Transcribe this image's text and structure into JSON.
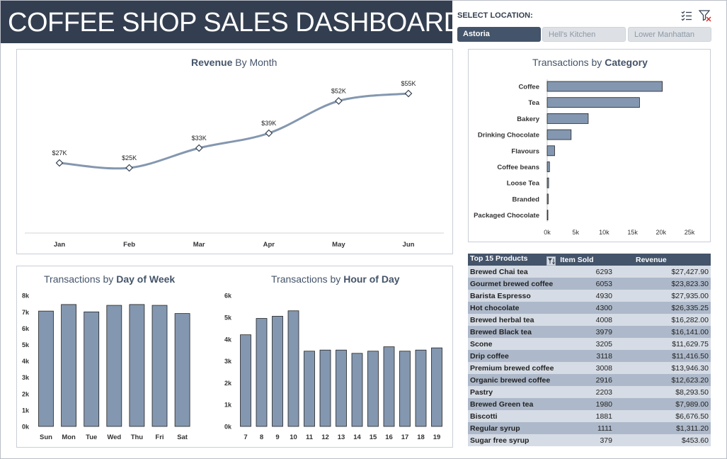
{
  "title": "COFFEE SHOP SALES DASHBOARD",
  "slicer": {
    "label": "SELECT LOCATION:",
    "options": [
      "Astoria",
      "Hell's Kitchen",
      "Lower Manhattan"
    ],
    "selected": "Astoria",
    "icons": [
      "multi-select-icon",
      "clear-filter-icon"
    ]
  },
  "colors": {
    "dark": "#333f50",
    "bar": "#8497b0",
    "accent": "#44546a"
  },
  "panels": {
    "revenue_title_bold": "Revenue",
    "revenue_title_rest": " By Month",
    "category_title_rest": "Transactions by ",
    "category_title_bold": "Category",
    "dow_title_rest": "Transactions by ",
    "dow_title_bold": "Day of Week",
    "hour_title_rest": "Transactions by ",
    "hour_title_bold": "Hour of Day"
  },
  "chart_data": [
    {
      "type": "line",
      "title": "Revenue By Month",
      "categories": [
        "Jan",
        "Feb",
        "Mar",
        "Apr",
        "May",
        "Jun"
      ],
      "values": [
        27,
        25,
        33,
        39,
        52,
        55
      ],
      "labels": [
        "$27K",
        "$25K",
        "$33K",
        "$39K",
        "$52K",
        "$55K"
      ],
      "smooth": true,
      "markers": "diamond"
    },
    {
      "type": "bar",
      "orientation": "horizontal",
      "title": "Transactions by Category",
      "categories": [
        "Coffee",
        "Tea",
        "Bakery",
        "Drinking Chocolate",
        "Flavours",
        "Coffee beans",
        "Loose Tea",
        "Branded",
        "Packaged Chocolate"
      ],
      "values": [
        20200,
        16200,
        7200,
        4200,
        1300,
        400,
        250,
        180,
        100
      ],
      "xticks": [
        "0k",
        "5k",
        "10k",
        "15k",
        "20k",
        "25k"
      ],
      "xlim": [
        0,
        25000
      ]
    },
    {
      "type": "bar",
      "title": "Transactions by Day of Week",
      "categories": [
        "Sun",
        "Mon",
        "Tue",
        "Wed",
        "Thu",
        "Fri",
        "Sat"
      ],
      "values": [
        7050,
        7450,
        7000,
        7400,
        7450,
        7400,
        6900
      ],
      "yticks": [
        "0k",
        "1k",
        "2k",
        "3k",
        "4k",
        "5k",
        "6k",
        "7k",
        "8k"
      ],
      "ylim": [
        0,
        8000
      ]
    },
    {
      "type": "bar",
      "title": "Transactions by Hour of Day",
      "categories": [
        "7",
        "8",
        "9",
        "10",
        "11",
        "12",
        "13",
        "14",
        "15",
        "16",
        "17",
        "18",
        "19"
      ],
      "values": [
        4200,
        4950,
        5050,
        5300,
        3450,
        3500,
        3500,
        3350,
        3450,
        3650,
        3450,
        3500,
        3600
      ],
      "yticks": [
        "0k",
        "1k",
        "2k",
        "3k",
        "4k",
        "5k",
        "6k"
      ],
      "ylim": [
        0,
        6000
      ]
    }
  ],
  "table": {
    "headers": [
      "Top 15 Products",
      "Item Sold",
      "Revenue"
    ],
    "sort_icon": "sort-filter-icon",
    "rows": [
      [
        "Brewed Chai tea",
        "6293",
        "$27,427.90"
      ],
      [
        "Gourmet brewed coffee",
        "6053",
        "$23,823.30"
      ],
      [
        "Barista Espresso",
        "4930",
        "$27,935.00"
      ],
      [
        "Hot chocolate",
        "4300",
        "$26,335.25"
      ],
      [
        "Brewed herbal tea",
        "4008",
        "$16,282.00"
      ],
      [
        "Brewed Black tea",
        "3979",
        "$16,141.00"
      ],
      [
        "Scone",
        "3205",
        "$11,629.75"
      ],
      [
        "Drip coffee",
        "3118",
        "$11,416.50"
      ],
      [
        "Premium brewed coffee",
        "3008",
        "$13,946.30"
      ],
      [
        "Organic brewed coffee",
        "2916",
        "$12,623.20"
      ],
      [
        "Pastry",
        "2203",
        "$8,293.50"
      ],
      [
        "Brewed Green tea",
        "1980",
        "$7,989.00"
      ],
      [
        "Biscotti",
        "1881",
        "$6,676.50"
      ],
      [
        "Regular syrup",
        "1111",
        "$1,311.20"
      ],
      [
        "Sugar free syrup",
        "379",
        "$453.60"
      ]
    ]
  }
}
